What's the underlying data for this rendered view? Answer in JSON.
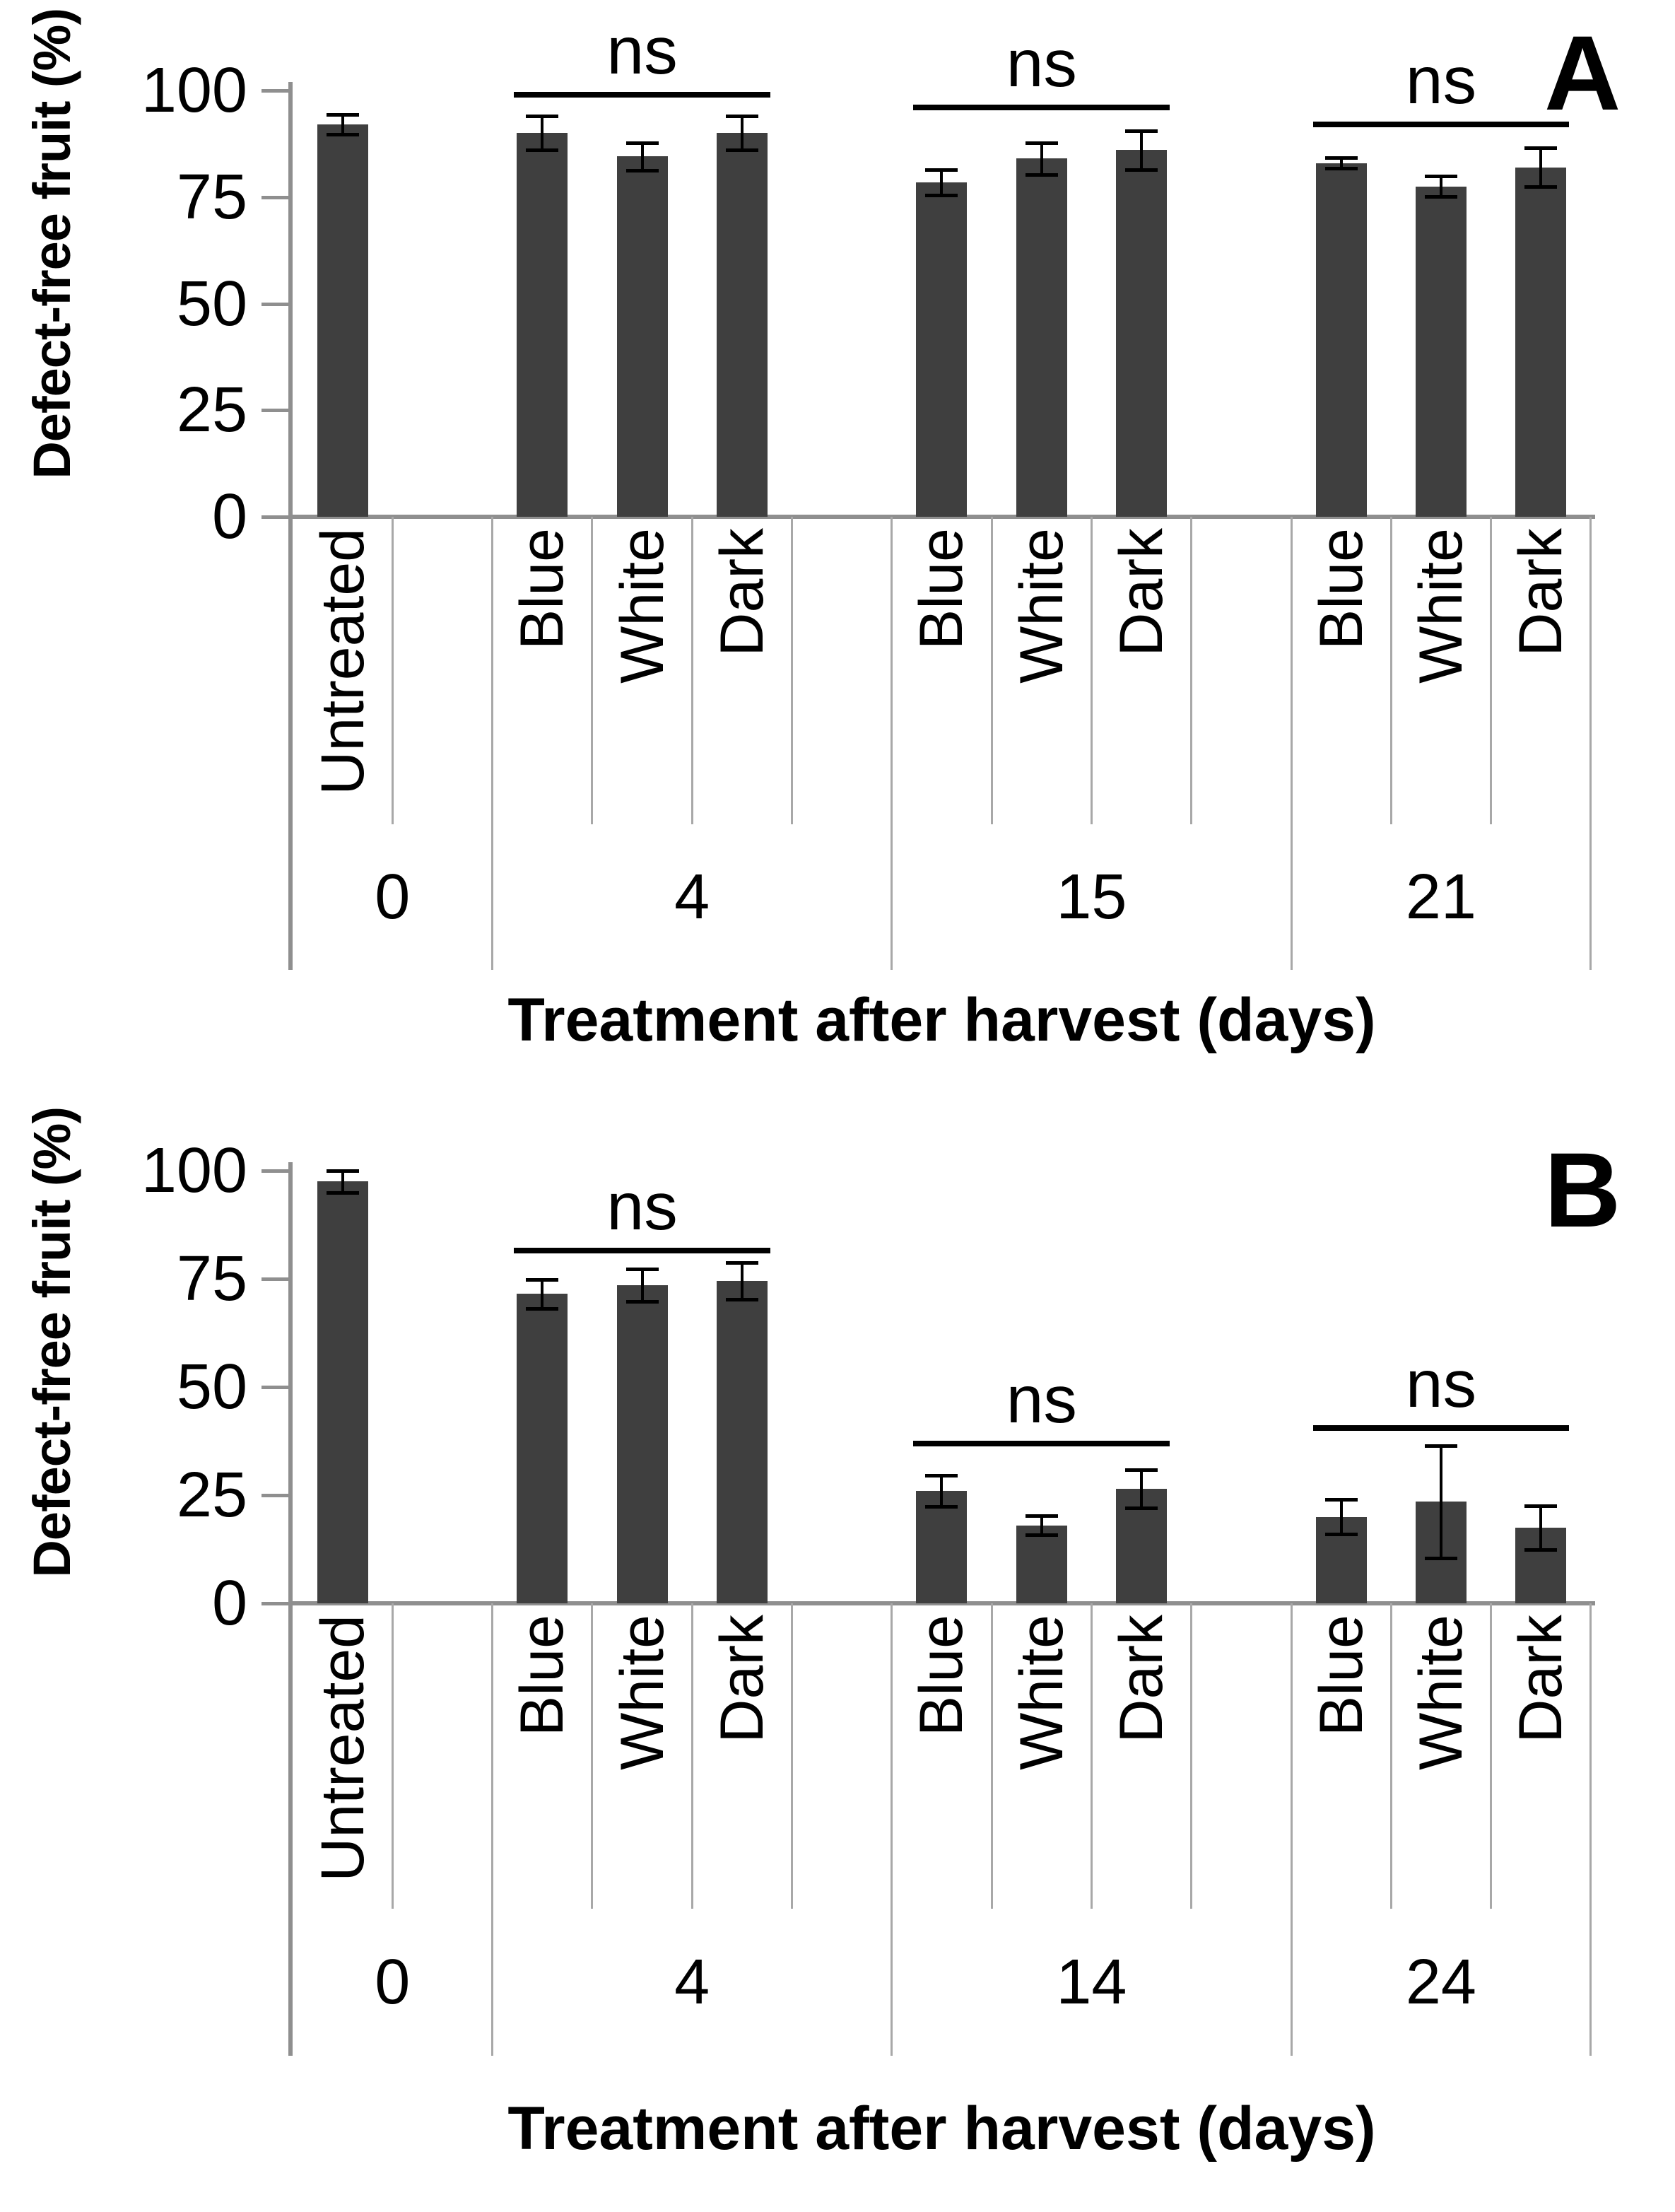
{
  "ns_label": "ns",
  "chart_data": [
    {
      "type": "bar",
      "panel": "A",
      "ylabel": "Defect-free fruit  (%)",
      "xlabel": "Treatment after harvest (days)",
      "ylim": [
        0,
        100
      ],
      "yticks": [
        0,
        25,
        50,
        75,
        100
      ],
      "bar_color": "#3F3F3F",
      "legend": "none",
      "grid": "off",
      "groups": [
        {
          "label": "0",
          "bars": [
            {
              "label": "Untreated",
              "value": 92,
              "error": 2.3
            }
          ]
        },
        {
          "label": "4",
          "ns": "ns",
          "ns_line_pct": 99,
          "bars": [
            {
              "label": "Blue",
              "value": 90,
              "error": 4.0
            },
            {
              "label": "White",
              "value": 84.5,
              "error": 3.2
            },
            {
              "label": "Dark",
              "value": 90,
              "error": 4.0
            }
          ]
        },
        {
          "label": "15",
          "ns": "ns",
          "ns_line_pct": 96,
          "bars": [
            {
              "label": "Blue",
              "value": 78.5,
              "error": 3.0
            },
            {
              "label": "White",
              "value": 84,
              "error": 3.8
            },
            {
              "label": "Dark",
              "value": 86,
              "error": 4.5
            }
          ]
        },
        {
          "label": "21",
          "ns": "ns",
          "ns_line_pct": 92,
          "bars": [
            {
              "label": "Blue",
              "value": 83,
              "error": 1.2
            },
            {
              "label": "White",
              "value": 77.5,
              "error": 2.4
            },
            {
              "label": "Dark",
              "value": 82,
              "error": 4.6
            }
          ]
        }
      ]
    },
    {
      "type": "bar",
      "panel": "B",
      "ylabel": "Defect-free fruit (%)",
      "xlabel": "Treatment after harvest (days)",
      "ylim": [
        0,
        100
      ],
      "yticks": [
        0,
        25,
        50,
        75,
        100
      ],
      "bar_color": "#3F3F3F",
      "legend": "none",
      "grid": "off",
      "groups": [
        {
          "label": "0",
          "bars": [
            {
              "label": "Untreated",
              "value": 97.5,
              "error": 2.5
            }
          ]
        },
        {
          "label": "4",
          "ns": "ns",
          "ns_line_pct": 81.5,
          "bars": [
            {
              "label": "Blue",
              "value": 71.5,
              "error": 3.4
            },
            {
              "label": "White",
              "value": 73.5,
              "error": 3.8
            },
            {
              "label": "Dark",
              "value": 74.5,
              "error": 4.2
            }
          ]
        },
        {
          "label": "14",
          "ns": "ns",
          "ns_line_pct": 37,
          "bars": [
            {
              "label": "Blue",
              "value": 26,
              "error": 3.6
            },
            {
              "label": "White",
              "value": 18,
              "error": 2.2
            },
            {
              "label": "Dark",
              "value": 26.5,
              "error": 4.4
            }
          ]
        },
        {
          "label": "24",
          "ns": "ns",
          "ns_line_pct": 40.5,
          "bars": [
            {
              "label": "Blue",
              "value": 20,
              "error": 4.0
            },
            {
              "label": "White",
              "value": 23.5,
              "error": 13.0
            },
            {
              "label": "Dark",
              "value": 17.5,
              "error": 5.0
            }
          ]
        }
      ]
    }
  ]
}
